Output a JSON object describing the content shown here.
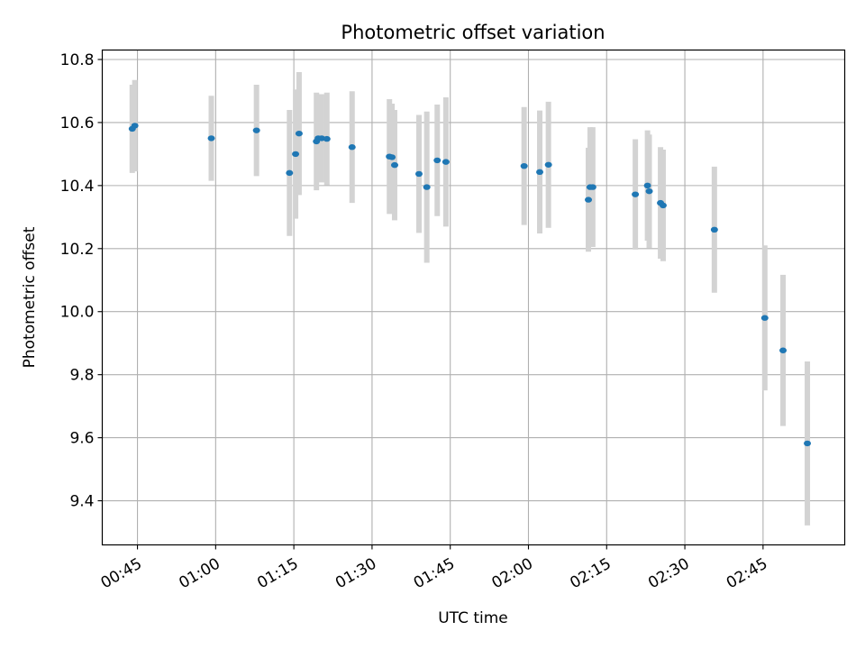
{
  "chart_data": {
    "type": "scatter",
    "title": "Photometric offset variation",
    "xlabel": "UTC time",
    "ylabel": "Photometric offset",
    "x_ticks": [
      "00:45",
      "01:00",
      "01:15",
      "01:30",
      "01:45",
      "02:00",
      "02:15",
      "02:30",
      "02:45"
    ],
    "y_ticks": [
      "9.4",
      "9.6",
      "9.8",
      "10.0",
      "10.2",
      "10.4",
      "10.6",
      "10.8"
    ],
    "xlim": [
      "00:38:15",
      "03:00:40"
    ],
    "ylim": [
      9.26,
      10.83
    ],
    "grid": true,
    "colors": {
      "marker": "#1f77b4",
      "errorbar": "#d3d3d3",
      "grid": "#b0b0b0"
    },
    "points": [
      {
        "x": "00:44:00",
        "y": 10.58,
        "yerr": 0.14
      },
      {
        "x": "00:44:30",
        "y": 10.59,
        "yerr": 0.145
      },
      {
        "x": "00:59:10",
        "y": 10.55,
        "yerr": 0.135
      },
      {
        "x": "01:07:50",
        "y": 10.575,
        "yerr": 0.145
      },
      {
        "x": "01:14:10",
        "y": 10.44,
        "yerr": 0.2
      },
      {
        "x": "01:15:20",
        "y": 10.5,
        "yerr": 0.205
      },
      {
        "x": "01:16:00",
        "y": 10.565,
        "yerr": 0.195
      },
      {
        "x": "01:19:20",
        "y": 10.54,
        "yerr": 0.155
      },
      {
        "x": "01:19:40",
        "y": 10.55,
        "yerr": 0.135
      },
      {
        "x": "01:20:20",
        "y": 10.55,
        "yerr": 0.14
      },
      {
        "x": "01:21:20",
        "y": 10.548,
        "yerr": 0.147
      },
      {
        "x": "01:26:10",
        "y": 10.522,
        "yerr": 0.177
      },
      {
        "x": "01:33:20",
        "y": 10.492,
        "yerr": 0.182
      },
      {
        "x": "01:33:50",
        "y": 10.49,
        "yerr": 0.17
      },
      {
        "x": "01:34:20",
        "y": 10.465,
        "yerr": 0.175
      },
      {
        "x": "01:39:00",
        "y": 10.437,
        "yerr": 0.187
      },
      {
        "x": "01:40:30",
        "y": 10.395,
        "yerr": 0.24
      },
      {
        "x": "01:42:30",
        "y": 10.48,
        "yerr": 0.177
      },
      {
        "x": "01:44:10",
        "y": 10.475,
        "yerr": 0.205
      },
      {
        "x": "01:59:10",
        "y": 10.462,
        "yerr": 0.187
      },
      {
        "x": "02:02:10",
        "y": 10.443,
        "yerr": 0.195
      },
      {
        "x": "02:03:50",
        "y": 10.466,
        "yerr": 0.2
      },
      {
        "x": "02:11:30",
        "y": 10.355,
        "yerr": 0.165
      },
      {
        "x": "02:11:50",
        "y": 10.395,
        "yerr": 0.19
      },
      {
        "x": "02:12:20",
        "y": 10.395,
        "yerr": 0.19
      },
      {
        "x": "02:20:30",
        "y": 10.372,
        "yerr": 0.175
      },
      {
        "x": "02:22:50",
        "y": 10.4,
        "yerr": 0.175
      },
      {
        "x": "02:23:10",
        "y": 10.382,
        "yerr": 0.18
      },
      {
        "x": "02:25:20",
        "y": 10.345,
        "yerr": 0.177
      },
      {
        "x": "02:25:50",
        "y": 10.337,
        "yerr": 0.177
      },
      {
        "x": "02:35:40",
        "y": 10.26,
        "yerr": 0.2
      },
      {
        "x": "02:45:20",
        "y": 9.98,
        "yerr": 0.23
      },
      {
        "x": "02:48:50",
        "y": 9.877,
        "yerr": 0.24
      },
      {
        "x": "02:53:30",
        "y": 9.582,
        "yerr": 0.26
      }
    ]
  }
}
